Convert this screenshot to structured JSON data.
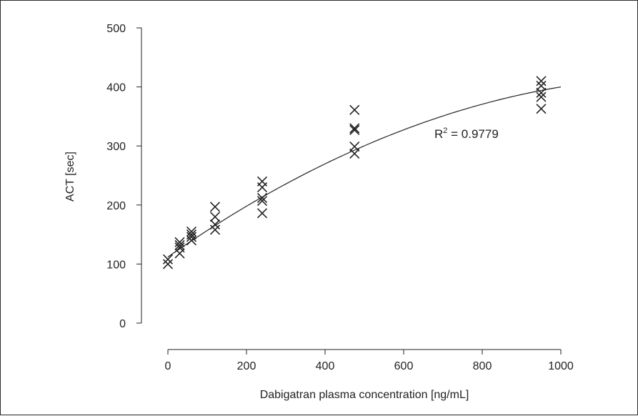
{
  "chart_data": {
    "type": "scatter",
    "xlabel": "Dabigatran plasma concentration [ng/mL]",
    "ylabel": "ACT [sec]",
    "xlim": [
      0,
      1000
    ],
    "ylim": [
      0,
      500
    ],
    "x_ticks": [
      0,
      200,
      400,
      600,
      800,
      1000
    ],
    "y_ticks": [
      0,
      100,
      200,
      300,
      400,
      500
    ],
    "grid": false,
    "marker": "x",
    "points": [
      {
        "x": 0,
        "y": 108
      },
      {
        "x": 0,
        "y": 100
      },
      {
        "x": 30,
        "y": 137
      },
      {
        "x": 30,
        "y": 132
      },
      {
        "x": 30,
        "y": 128
      },
      {
        "x": 30,
        "y": 118
      },
      {
        "x": 60,
        "y": 155
      },
      {
        "x": 60,
        "y": 150
      },
      {
        "x": 60,
        "y": 146
      },
      {
        "x": 60,
        "y": 140
      },
      {
        "x": 120,
        "y": 197
      },
      {
        "x": 120,
        "y": 180
      },
      {
        "x": 120,
        "y": 167
      },
      {
        "x": 120,
        "y": 158
      },
      {
        "x": 240,
        "y": 240
      },
      {
        "x": 240,
        "y": 230
      },
      {
        "x": 240,
        "y": 212
      },
      {
        "x": 240,
        "y": 207
      },
      {
        "x": 240,
        "y": 186
      },
      {
        "x": 475,
        "y": 361
      },
      {
        "x": 475,
        "y": 330
      },
      {
        "x": 475,
        "y": 327
      },
      {
        "x": 475,
        "y": 299
      },
      {
        "x": 475,
        "y": 287
      },
      {
        "x": 950,
        "y": 410
      },
      {
        "x": 950,
        "y": 402
      },
      {
        "x": 950,
        "y": 390
      },
      {
        "x": 950,
        "y": 383
      },
      {
        "x": 950,
        "y": 363
      }
    ],
    "fit": {
      "type": "quadratic",
      "coefficients": [
        112,
        0.465,
        -0.000177
      ],
      "x_range": [
        0,
        1000
      ]
    },
    "annotations": [
      {
        "text_base": "R",
        "text_sup": "2",
        "text_rest": " = 0.9779"
      }
    ]
  }
}
